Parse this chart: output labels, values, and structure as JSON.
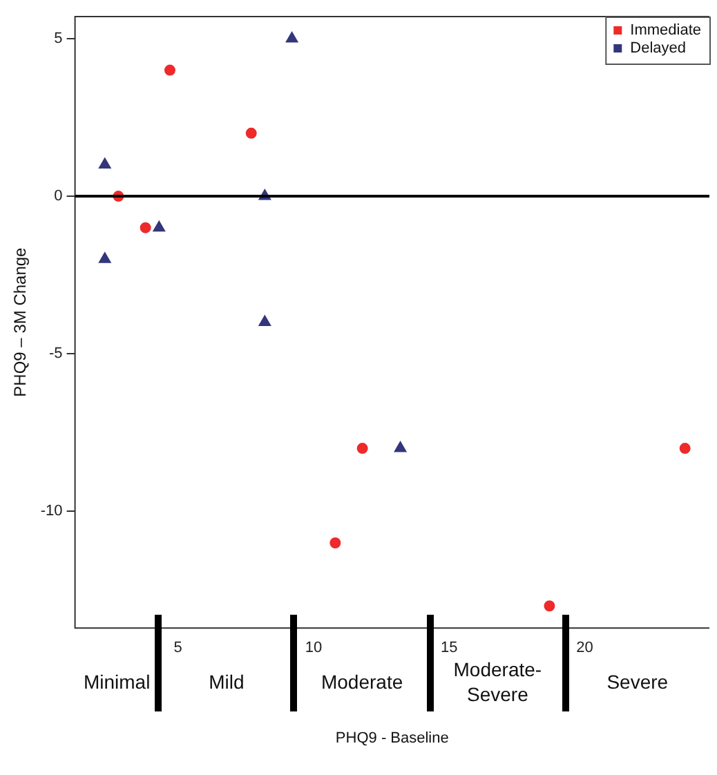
{
  "chart_data": {
    "type": "scatter",
    "xlabel": "PHQ9 - Baseline",
    "ylabel": "PHQ9 – 3M Change",
    "xlim": [
      1.2,
      24.6
    ],
    "ylim": [
      -13.7,
      5.7
    ],
    "xticks": [
      5,
      10,
      15,
      20
    ],
    "yticks": [
      -10,
      -5,
      0,
      5
    ],
    "grid": false,
    "legend": "top right",
    "series": [
      {
        "name": "Immediate",
        "color": "#ee2a2a",
        "marker": "circle",
        "x": [
          2.8,
          3.8,
          4.7,
          7.7,
          10.8,
          11.8,
          18.7,
          23.7
        ],
        "values": [
          0,
          -1,
          4,
          2,
          -11,
          -8,
          -13,
          -8
        ]
      },
      {
        "name": "Delayed",
        "color": "#33367a",
        "marker": "triangle",
        "x": [
          2.3,
          2.3,
          4.3,
          8.2,
          8.2,
          9.2,
          13.2
        ],
        "values": [
          1,
          -2,
          -1,
          0,
          -4,
          5,
          -8
        ]
      }
    ],
    "ref_lines": [
      {
        "axis": "y",
        "value": 0,
        "color": "#000000"
      }
    ],
    "annotations": [
      "Minimal",
      "Mild",
      "Moderate",
      "Moderate-Severe",
      "Severe"
    ]
  }
}
